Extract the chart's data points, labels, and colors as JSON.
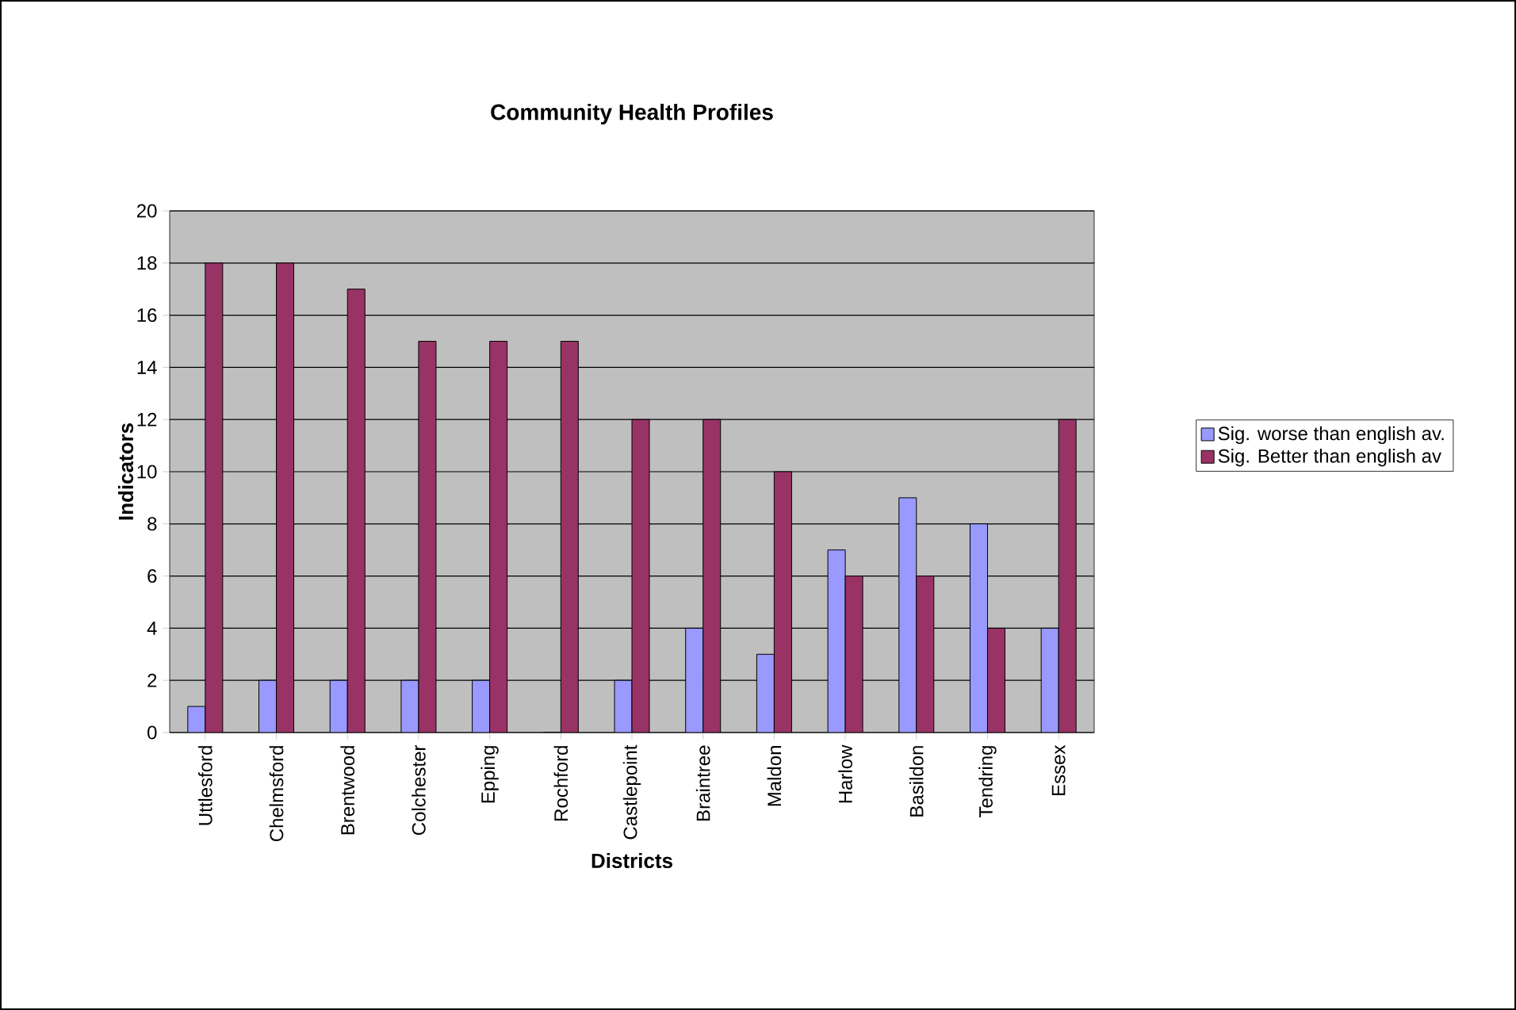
{
  "chart_data": {
    "type": "bar",
    "title": "Community Health Profiles",
    "xlabel": "Districts",
    "ylabel": "Indicators",
    "categories": [
      "Uttlesford",
      "Chelmsford",
      "Brentwood",
      "Colchester",
      "Epping",
      "Rochford",
      "Castlepoint",
      "Braintree",
      "Maldon",
      "Harlow",
      "Basildon",
      "Tendring",
      "Essex"
    ],
    "series": [
      {
        "name": "Sig. worse than english av.",
        "color": "#9999ff",
        "values": [
          1,
          2,
          2,
          2,
          2,
          0,
          2,
          4,
          3,
          7,
          9,
          8,
          4
        ]
      },
      {
        "name": "Sig. Better than english av",
        "color": "#993366",
        "values": [
          18,
          18,
          17,
          15,
          15,
          15,
          12,
          12,
          10,
          6,
          6,
          4,
          12
        ]
      }
    ],
    "ylim": [
      0,
      20
    ],
    "yticks": [
      0,
      2,
      4,
      6,
      8,
      10,
      12,
      14,
      16,
      18,
      20
    ],
    "grid": "y",
    "legend": "right"
  }
}
